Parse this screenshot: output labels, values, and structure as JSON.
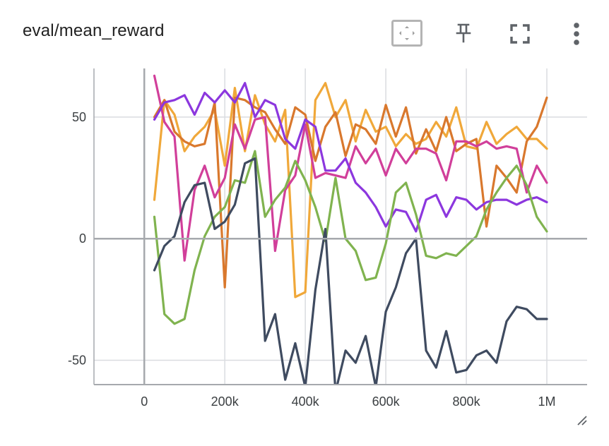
{
  "card": {
    "title": "eval/mean_reward"
  },
  "toolbar": {
    "buttons": [
      {
        "name": "fit-domain-button",
        "icon": "fit-to-data-icon"
      },
      {
        "name": "pin-button",
        "icon": "pin-icon"
      },
      {
        "name": "fullscreen-button",
        "icon": "fullscreen-icon"
      },
      {
        "name": "more-options-button",
        "icon": "more-vert-icon"
      }
    ]
  },
  "chart_data": {
    "type": "line",
    "title": "eval/mean_reward",
    "xlabel": "",
    "ylabel": "",
    "xlim": [
      -125000,
      1100000
    ],
    "ylim": [
      -60,
      70
    ],
    "x_ticks": [
      0,
      200000,
      400000,
      600000,
      800000,
      1000000
    ],
    "x_tick_labels": [
      "0",
      "200k",
      "400k",
      "600k",
      "800k",
      "1M"
    ],
    "y_ticks": [
      50,
      0,
      -50
    ],
    "y_tick_labels": [
      "50",
      "0",
      "-50"
    ],
    "grid": true,
    "legend": "none",
    "x": [
      25000,
      50000,
      75000,
      100000,
      125000,
      150000,
      175000,
      200000,
      225000,
      250000,
      275000,
      300000,
      325000,
      350000,
      375000,
      400000,
      425000,
      450000,
      475000,
      500000,
      525000,
      550000,
      575000,
      600000,
      625000,
      650000,
      675000,
      700000,
      725000,
      750000,
      775000,
      800000,
      825000,
      850000,
      875000,
      900000,
      925000,
      950000,
      975000,
      1000000
    ],
    "series": [
      {
        "color": "#f0a83a",
        "values": [
          16,
          57,
          51,
          36,
          42,
          46,
          53,
          30,
          62,
          36,
          59,
          47,
          40,
          53,
          -24,
          -22,
          57,
          64,
          50,
          57,
          40,
          53,
          44,
          46,
          38,
          43,
          39,
          41,
          48,
          42,
          54,
          38,
          37,
          48,
          39,
          43,
          46,
          41,
          41,
          37
        ]
      },
      {
        "color": "#d9782d",
        "values": [
          50,
          57,
          44,
          40,
          38,
          39,
          56,
          -20,
          58,
          57,
          54,
          52,
          45,
          39,
          54,
          51,
          32,
          46,
          52,
          34,
          47,
          45,
          39,
          55,
          42,
          54,
          35,
          45,
          36,
          50,
          36,
          39,
          41,
          5,
          30,
          25,
          19,
          40,
          46,
          58
        ]
      },
      {
        "color": "#d13f9a",
        "values": [
          67,
          48,
          42,
          -9,
          20,
          30,
          17,
          25,
          47,
          37,
          49,
          50,
          -5,
          20,
          26,
          47,
          25,
          27,
          26,
          25,
          38,
          31,
          37,
          26,
          37,
          31,
          37,
          37,
          35,
          24,
          40,
          40,
          38,
          40,
          37,
          38,
          37,
          19,
          30,
          23
        ]
      },
      {
        "color": "#8c37de",
        "values": [
          49,
          56,
          57,
          59,
          51,
          60,
          56,
          61,
          56,
          64,
          50,
          57,
          55,
          41,
          37,
          49,
          46,
          28,
          28,
          33,
          23,
          19,
          13,
          5,
          12,
          11,
          3,
          16,
          18,
          9,
          17,
          16,
          12,
          15,
          16,
          16,
          14,
          16,
          17,
          15
        ]
      },
      {
        "color": "#80b34f",
        "values": [
          9,
          -31,
          -35,
          -33,
          -13,
          1,
          9,
          13,
          24,
          23,
          36,
          9,
          16,
          21,
          32,
          24,
          13,
          -1,
          25,
          0,
          -5,
          -17,
          -16,
          -2,
          19,
          23,
          10,
          -7,
          -8,
          -6,
          -7,
          -3,
          1,
          12,
          19,
          25,
          30,
          22,
          9,
          3
        ]
      },
      {
        "color": "#3f4b60",
        "values": [
          -13,
          -3,
          1,
          15,
          22,
          23,
          4,
          7,
          14,
          31,
          33,
          -42,
          -31,
          -58,
          -43,
          -61,
          -21,
          4,
          -63,
          -46,
          -51,
          -40,
          -61,
          -30,
          -20,
          -6,
          0,
          -46,
          -53,
          -38,
          -55,
          -54,
          -48,
          -46,
          -51,
          -34,
          -28,
          -29,
          -33,
          -33
        ]
      }
    ]
  }
}
